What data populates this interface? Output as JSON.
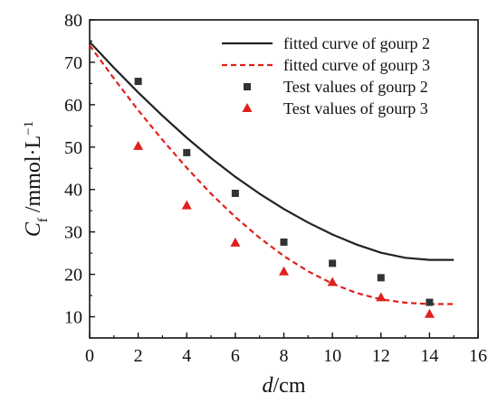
{
  "chart_data": {
    "type": "scatter",
    "xlabel": {
      "italic": "d",
      "rest": "/cm"
    },
    "ylabel": {
      "italic": "C",
      "sub": "f",
      "rest": " /mmol·L",
      "sup": "−1"
    },
    "xlim": [
      0,
      16
    ],
    "ylim": [
      5,
      80
    ],
    "xticks": [
      "0",
      "2",
      "4",
      "6",
      "8",
      "10",
      "12",
      "14",
      "16"
    ],
    "yticks": [
      "10",
      "20",
      "30",
      "40",
      "50",
      "60",
      "70",
      "80"
    ],
    "grid": false,
    "legend_position": "top-right",
    "series": [
      {
        "name": "fitted curve of gourp 2",
        "kind": "line",
        "style": "solid",
        "color": "#222222",
        "x": [
          0,
          1,
          2,
          3,
          4,
          5,
          6,
          7,
          8,
          9,
          10,
          11,
          12,
          13,
          14,
          15
        ],
        "y": [
          74.8,
          68.7,
          62.9,
          57.4,
          52.2,
          47.4,
          43.0,
          39.0,
          35.4,
          32.2,
          29.4,
          27.0,
          25.1,
          23.9,
          23.4,
          23.4
        ]
      },
      {
        "name": "fitted curve of gourp 3",
        "kind": "line",
        "style": "dashed",
        "color": "#e0201c",
        "x": [
          0,
          1,
          2,
          3,
          4,
          5,
          6,
          7,
          8,
          9,
          10,
          11,
          12,
          13,
          14,
          15
        ],
        "y": [
          74.0,
          66.2,
          58.7,
          51.7,
          45.1,
          39.0,
          33.5,
          28.6,
          24.3,
          20.7,
          17.8,
          15.6,
          14.1,
          13.3,
          13.0,
          13.0
        ]
      },
      {
        "name": "Test values of gourp 2",
        "kind": "scatter",
        "marker": "square",
        "color": "#333333",
        "x": [
          2,
          4,
          6,
          8,
          10,
          12,
          14
        ],
        "y": [
          65.5,
          48.7,
          39.1,
          27.6,
          22.6,
          19.2,
          13.4
        ]
      },
      {
        "name": "Test values of gourp 3",
        "kind": "scatter",
        "marker": "triangle",
        "color": "#e0201c",
        "x": [
          2,
          4,
          6,
          8,
          10,
          12,
          14
        ],
        "y": [
          50.2,
          36.2,
          27.4,
          20.6,
          18.1,
          14.5,
          10.6
        ]
      }
    ]
  }
}
